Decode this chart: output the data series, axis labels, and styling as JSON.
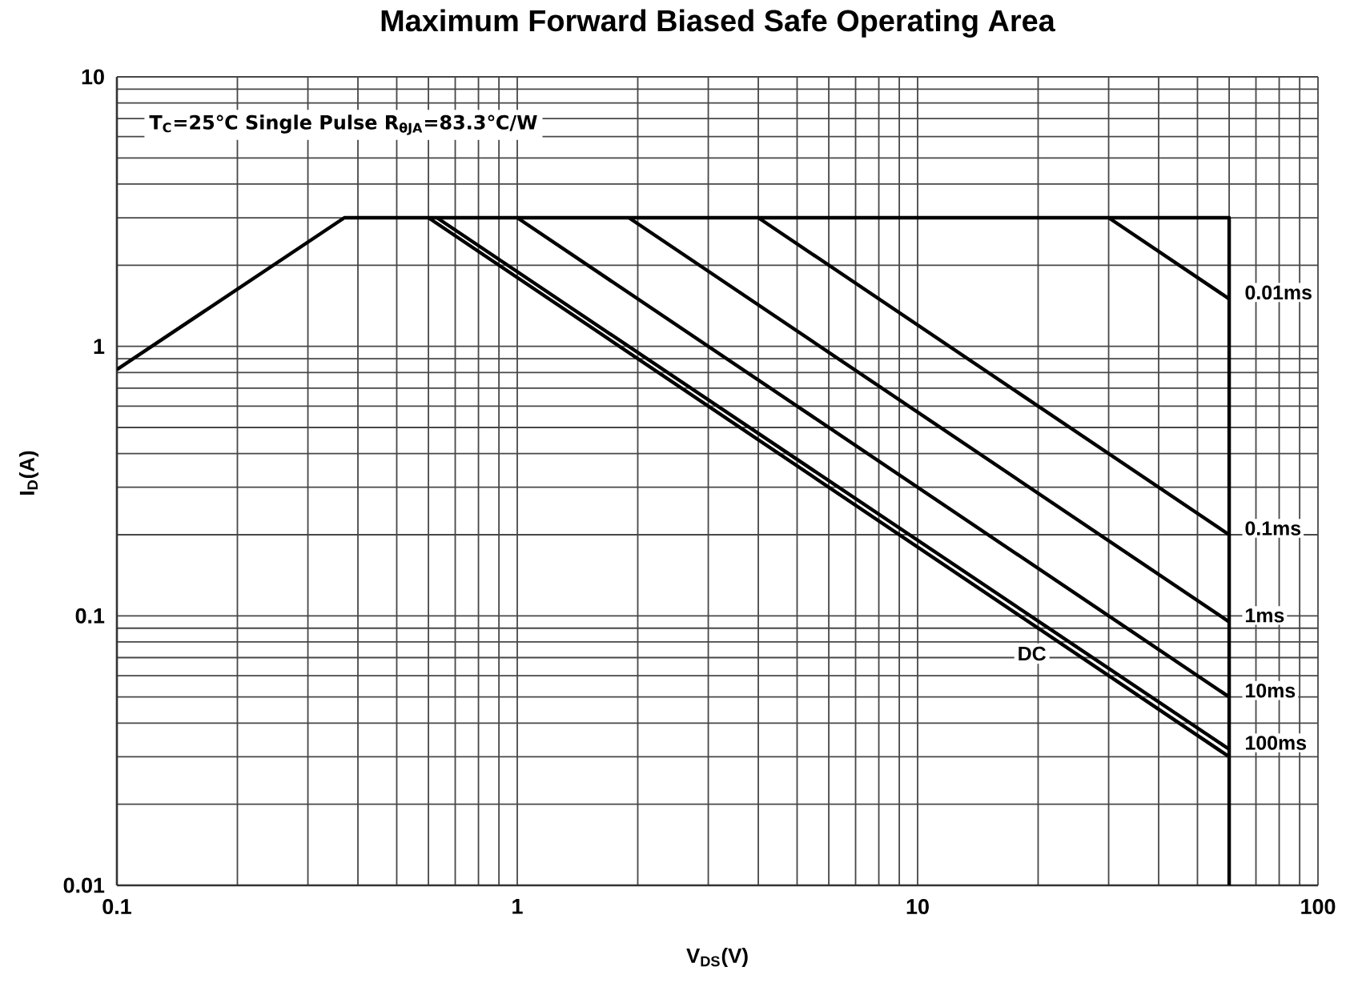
{
  "chart_data": {
    "type": "line",
    "title": "Maximum Forward Biased Safe Operating Area",
    "xlabel": "V$_{DS}$(V)",
    "ylabel": "I$_{D}$(A)",
    "log": "xy",
    "xlim": [
      0.1,
      100
    ],
    "ylim": [
      0.01,
      10
    ],
    "xticks": [
      0.1,
      1,
      10,
      100
    ],
    "yticks": [
      0.01,
      0.1,
      1,
      10
    ],
    "grid": true,
    "annotations": [
      "T$_{C}$=25℃ Single Pulse R$_{θJA}$=83.3℃/W"
    ],
    "series": [
      {
        "color": "#000000",
        "x": [
          0.1,
          0.37,
          60,
          60
        ],
        "values": [
          0.82,
          3,
          3,
          0.01
        ]
      },
      {
        "name": "0.01ms",
        "color": "#000000",
        "x": [
          30,
          60
        ],
        "values": [
          3,
          1.5
        ]
      },
      {
        "name": "0.1ms",
        "color": "#000000",
        "x": [
          4,
          60
        ],
        "values": [
          3,
          0.2
        ]
      },
      {
        "name": "1ms",
        "color": "#000000",
        "x": [
          1.9,
          60
        ],
        "values": [
          3,
          0.095
        ]
      },
      {
        "name": "10ms",
        "color": "#000000",
        "x": [
          1,
          60
        ],
        "values": [
          3,
          0.05
        ]
      },
      {
        "name": "100ms",
        "color": "#000000",
        "x": [
          0.63,
          60
        ],
        "values": [
          3,
          0.032
        ]
      },
      {
        "name": "DC",
        "color": "#000000",
        "x": [
          0.6,
          60
        ],
        "values": [
          3,
          0.03
        ]
      }
    ]
  }
}
